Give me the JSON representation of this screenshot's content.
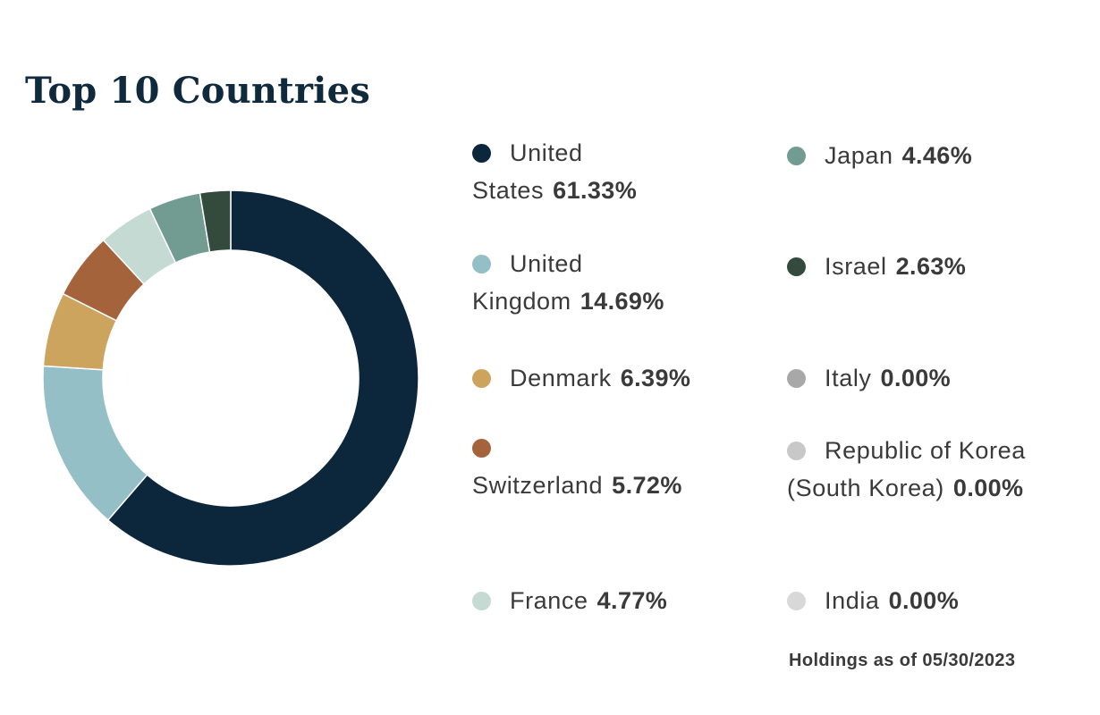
{
  "title": "Top 10 Countries",
  "footnote": "Holdings as of 05/30/2023",
  "colors": {
    "title": "#102a3d",
    "text": "#3a3a3a"
  },
  "chart_data": {
    "type": "pie",
    "title": "Top 10 Countries",
    "donut": true,
    "legend_position": "right",
    "slices": [
      {
        "label": "United States",
        "value": 61.33,
        "display": "61.33%",
        "color": "#0c263b"
      },
      {
        "label": "United Kingdom",
        "value": 14.69,
        "display": "14.69%",
        "color": "#95bfc6"
      },
      {
        "label": "Denmark",
        "value": 6.39,
        "display": "6.39%",
        "color": "#cda45e"
      },
      {
        "label": "Switzerland",
        "value": 5.72,
        "display": "5.72%",
        "color": "#a4633a"
      },
      {
        "label": "France",
        "value": 4.77,
        "display": "4.77%",
        "color": "#c5dad2"
      },
      {
        "label": "Japan",
        "value": 4.46,
        "display": "4.46%",
        "color": "#729c91"
      },
      {
        "label": "Israel",
        "value": 2.63,
        "display": "2.63%",
        "color": "#334a3d"
      },
      {
        "label": "Italy",
        "value": 0.0,
        "display": "0.00%",
        "color": "#a8a8a8"
      },
      {
        "label": "Republic of Korea (South Korea)",
        "value": 0.0,
        "display": "0.00%",
        "color": "#c8c8c8"
      },
      {
        "label": "India",
        "value": 0.0,
        "display": "0.00%",
        "color": "#d8d8d8"
      }
    ]
  }
}
